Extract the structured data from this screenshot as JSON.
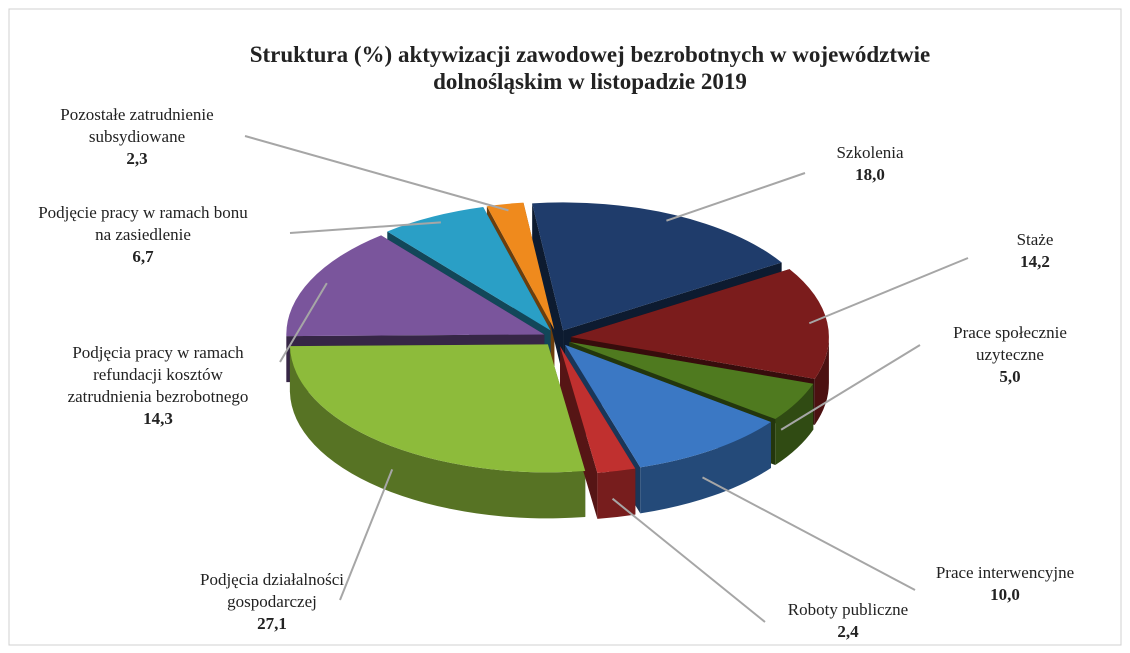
{
  "chart_data": {
    "type": "pie3d",
    "title": "Struktura (%) aktywizacji zawodowej bezrobotnych w województwie dolnośląskim w listopadzie 2019",
    "categories": [
      "Szkolenia",
      "Staże",
      "Prace społecznie uzyteczne",
      "Prace interwencyjne",
      "Roboty publiczne",
      "Podjęcia działalności gospodarczej",
      "Podjęcia pracy w ramach refundacji kosztów zatrudnienia bezrobotnego",
      "Podjęcie pracy w ramach bonu na zasiedlenie",
      "Pozostałe zatrudnienie subsydiowane"
    ],
    "values": [
      18.0,
      14.2,
      5.0,
      10.0,
      2.4,
      27.1,
      14.3,
      6.7,
      2.3
    ],
    "value_labels": [
      "18,0",
      "14,2",
      "5,0",
      "10,0",
      "2,4",
      "27,1",
      "14,3",
      "6,7",
      "2,3"
    ],
    "colors": [
      "#1f3c6b",
      "#7b1c1c",
      "#4f7a1f",
      "#3b78c4",
      "#c0302f",
      "#8dbb3b",
      "#7a559c",
      "#2a9fc6",
      "#ef8a1d"
    ]
  }
}
